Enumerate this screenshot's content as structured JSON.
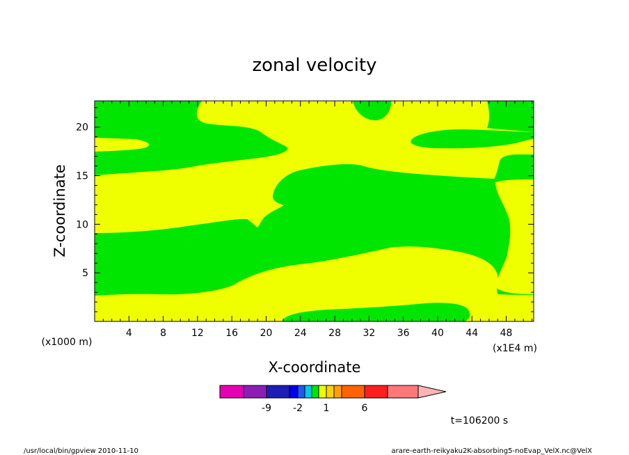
{
  "chart_data": {
    "type": "contour",
    "title": "zonal velocity",
    "xlabel": "X-coordinate",
    "ylabel": "Z-coordinate",
    "x_units_label": "(x1E4 m)",
    "y_units_label": "(x1000 m)",
    "xlim": [
      0,
      51.2
    ],
    "ylim": [
      0,
      22.7
    ],
    "x_ticks": [
      4,
      8,
      12,
      16,
      20,
      24,
      28,
      32,
      36,
      40,
      44,
      48
    ],
    "y_ticks": [
      5,
      10,
      15,
      20
    ],
    "fill_levels": [
      {
        "name": "negative",
        "color": "#00e600"
      },
      {
        "name": "positive",
        "color": "#f0ff00"
      }
    ],
    "colorbar": {
      "colors": [
        "#e600b4",
        "#8c1eb4",
        "#1e1eb4",
        "#0000e6",
        "#1e5af0",
        "#00c8f0",
        "#00e600",
        "#f0ff00",
        "#ffd200",
        "#ffa000",
        "#ff6400",
        "#ff1e1e",
        "#ff7878",
        "#ffb4b4"
      ],
      "tick_labels": [
        "-9",
        "-2",
        "1",
        "6"
      ]
    },
    "annotation_time": "t=106200 s"
  },
  "footer": {
    "left": "/usr/local/bin/gpview  2010-11-10",
    "right": "arare-earth-reikyaku2K-absorbing5-noEvap_VelX.nc@VelX"
  }
}
